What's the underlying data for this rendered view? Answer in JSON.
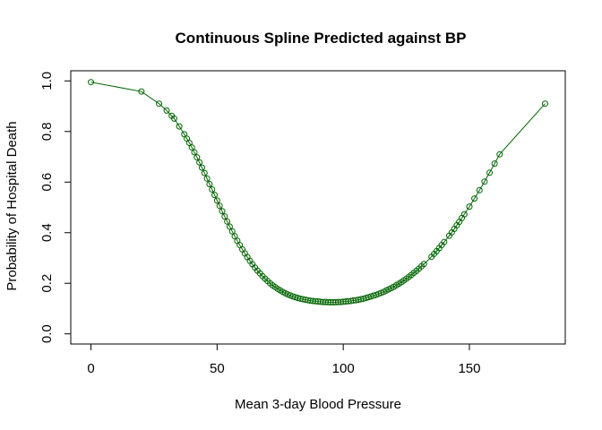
{
  "chart_data": {
    "type": "line",
    "title": "Continuous Spline Predicted against BP",
    "xlabel": "Mean 3-day Blood Pressure",
    "ylabel": "Probability of Hospital Death",
    "xlim": [
      -8,
      188
    ],
    "ylim": [
      -0.04,
      1.04
    ],
    "xticks": [
      0,
      50,
      100,
      150
    ],
    "xtick_labels": [
      "0",
      "50",
      "100",
      "150"
    ],
    "yticks": [
      0.0,
      0.2,
      0.4,
      0.6,
      0.8,
      1.0
    ],
    "ytick_labels": [
      "0.0",
      "0.2",
      "0.4",
      "0.6",
      "0.8",
      "1.0"
    ],
    "grid": false,
    "colors": {
      "series": "#006400",
      "axes": "#000000"
    },
    "series": [
      {
        "marker": "open-circle",
        "x": [
          0,
          20,
          27,
          30,
          32,
          33,
          35,
          37,
          38,
          39,
          40,
          41,
          42,
          43,
          44,
          45,
          46,
          47,
          48,
          49,
          50,
          51,
          52,
          53,
          54,
          55,
          56,
          57,
          58,
          59,
          60,
          61,
          62,
          63,
          64,
          65,
          66,
          67,
          68,
          69,
          70,
          71,
          72,
          73,
          74,
          75,
          76,
          77,
          78,
          79,
          80,
          81,
          82,
          83,
          84,
          85,
          86,
          87,
          88,
          89,
          90,
          91,
          92,
          93,
          94,
          95,
          96,
          97,
          98,
          99,
          100,
          101,
          102,
          103,
          104,
          105,
          106,
          107,
          108,
          109,
          110,
          111,
          112,
          113,
          114,
          115,
          116,
          117,
          118,
          119,
          120,
          121,
          122,
          123,
          124,
          125,
          126,
          127,
          128,
          129,
          130,
          131,
          132,
          135,
          136,
          137,
          138,
          139,
          140,
          142,
          143,
          144,
          145,
          146,
          147,
          148,
          150,
          152,
          154,
          156,
          158,
          160,
          162,
          180
        ],
        "y": [
          0.995,
          0.958,
          0.91,
          0.883,
          0.862,
          0.851,
          0.82,
          0.789,
          0.772,
          0.755,
          0.737,
          0.718,
          0.698,
          0.678,
          0.657,
          0.636,
          0.614,
          0.592,
          0.571,
          0.549,
          0.527,
          0.506,
          0.485,
          0.464,
          0.444,
          0.424,
          0.405,
          0.386,
          0.368,
          0.351,
          0.334,
          0.318,
          0.303,
          0.289,
          0.275,
          0.262,
          0.25,
          0.239,
          0.228,
          0.218,
          0.209,
          0.2,
          0.192,
          0.185,
          0.178,
          0.172,
          0.166,
          0.161,
          0.156,
          0.152,
          0.148,
          0.145,
          0.142,
          0.139,
          0.137,
          0.135,
          0.133,
          0.131,
          0.13,
          0.129,
          0.128,
          0.127,
          0.126,
          0.126,
          0.125,
          0.125,
          0.125,
          0.125,
          0.126,
          0.126,
          0.127,
          0.128,
          0.129,
          0.13,
          0.132,
          0.133,
          0.135,
          0.137,
          0.139,
          0.142,
          0.145,
          0.148,
          0.151,
          0.154,
          0.158,
          0.162,
          0.166,
          0.171,
          0.176,
          0.181,
          0.186,
          0.192,
          0.198,
          0.204,
          0.211,
          0.218,
          0.225,
          0.233,
          0.241,
          0.249,
          0.258,
          0.267,
          0.276,
          0.305,
          0.316,
          0.327,
          0.339,
          0.351,
          0.363,
          0.388,
          0.401,
          0.415,
          0.429,
          0.443,
          0.458,
          0.473,
          0.503,
          0.535,
          0.568,
          0.602,
          0.637,
          0.673,
          0.71,
          0.91
        ]
      }
    ]
  }
}
